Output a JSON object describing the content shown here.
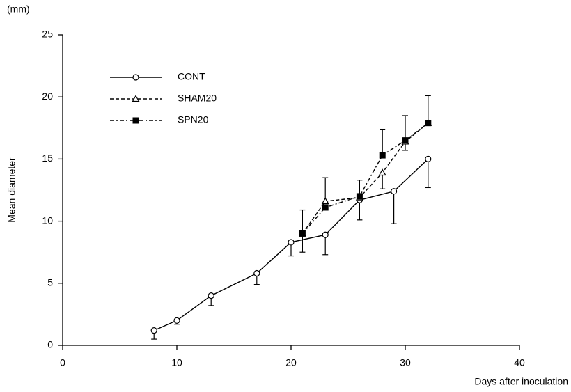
{
  "chart_data": {
    "type": "line",
    "y_unit": "(mm)",
    "ylabel": "Mean diameter",
    "xlabel": "Days after inoculation",
    "xlim": [
      0,
      40
    ],
    "xticks": [
      0,
      10,
      20,
      30,
      40
    ],
    "ylim": [
      0,
      25
    ],
    "yticks": [
      0,
      5,
      10,
      15,
      20,
      25
    ],
    "grid": false,
    "legend": "upper-left",
    "series": [
      {
        "name": "CONT",
        "color": "#000000",
        "dash": "solid",
        "marker": "open-circle",
        "x": [
          8,
          10,
          13,
          17,
          20,
          23,
          26,
          29,
          32
        ],
        "values": [
          1.2,
          2.0,
          4.0,
          5.8,
          8.3,
          8.9,
          11.7,
          12.4,
          15.0
        ],
        "errors_up": [
          null,
          null,
          null,
          null,
          null,
          null,
          null,
          null,
          null
        ],
        "errors_down": [
          0.7,
          0.3,
          0.8,
          0.9,
          1.1,
          1.6,
          1.6,
          2.6,
          2.3
        ]
      },
      {
        "name": "SHAM20",
        "color": "#000000",
        "dash": "dashed",
        "marker": "open-triangle",
        "x": [
          21,
          23,
          26,
          28,
          30,
          32
        ],
        "values": [
          9.0,
          11.6,
          11.9,
          13.9,
          16.4,
          17.9
        ],
        "errors_up": [
          null,
          1.9,
          null,
          null,
          null,
          null
        ],
        "errors_down": [
          null,
          null,
          null,
          1.3,
          0.7,
          null
        ]
      },
      {
        "name": "SPN20",
        "color": "#000000",
        "dash": "dash-dot",
        "marker": "filled-square",
        "x": [
          21,
          23,
          26,
          28,
          30,
          32
        ],
        "values": [
          9.0,
          11.1,
          12.0,
          15.3,
          16.5,
          17.9
        ],
        "errors_up": [
          1.9,
          null,
          1.3,
          2.1,
          2.0,
          2.2
        ],
        "errors_down": [
          1.5,
          null,
          null,
          null,
          null,
          null
        ]
      }
    ]
  }
}
